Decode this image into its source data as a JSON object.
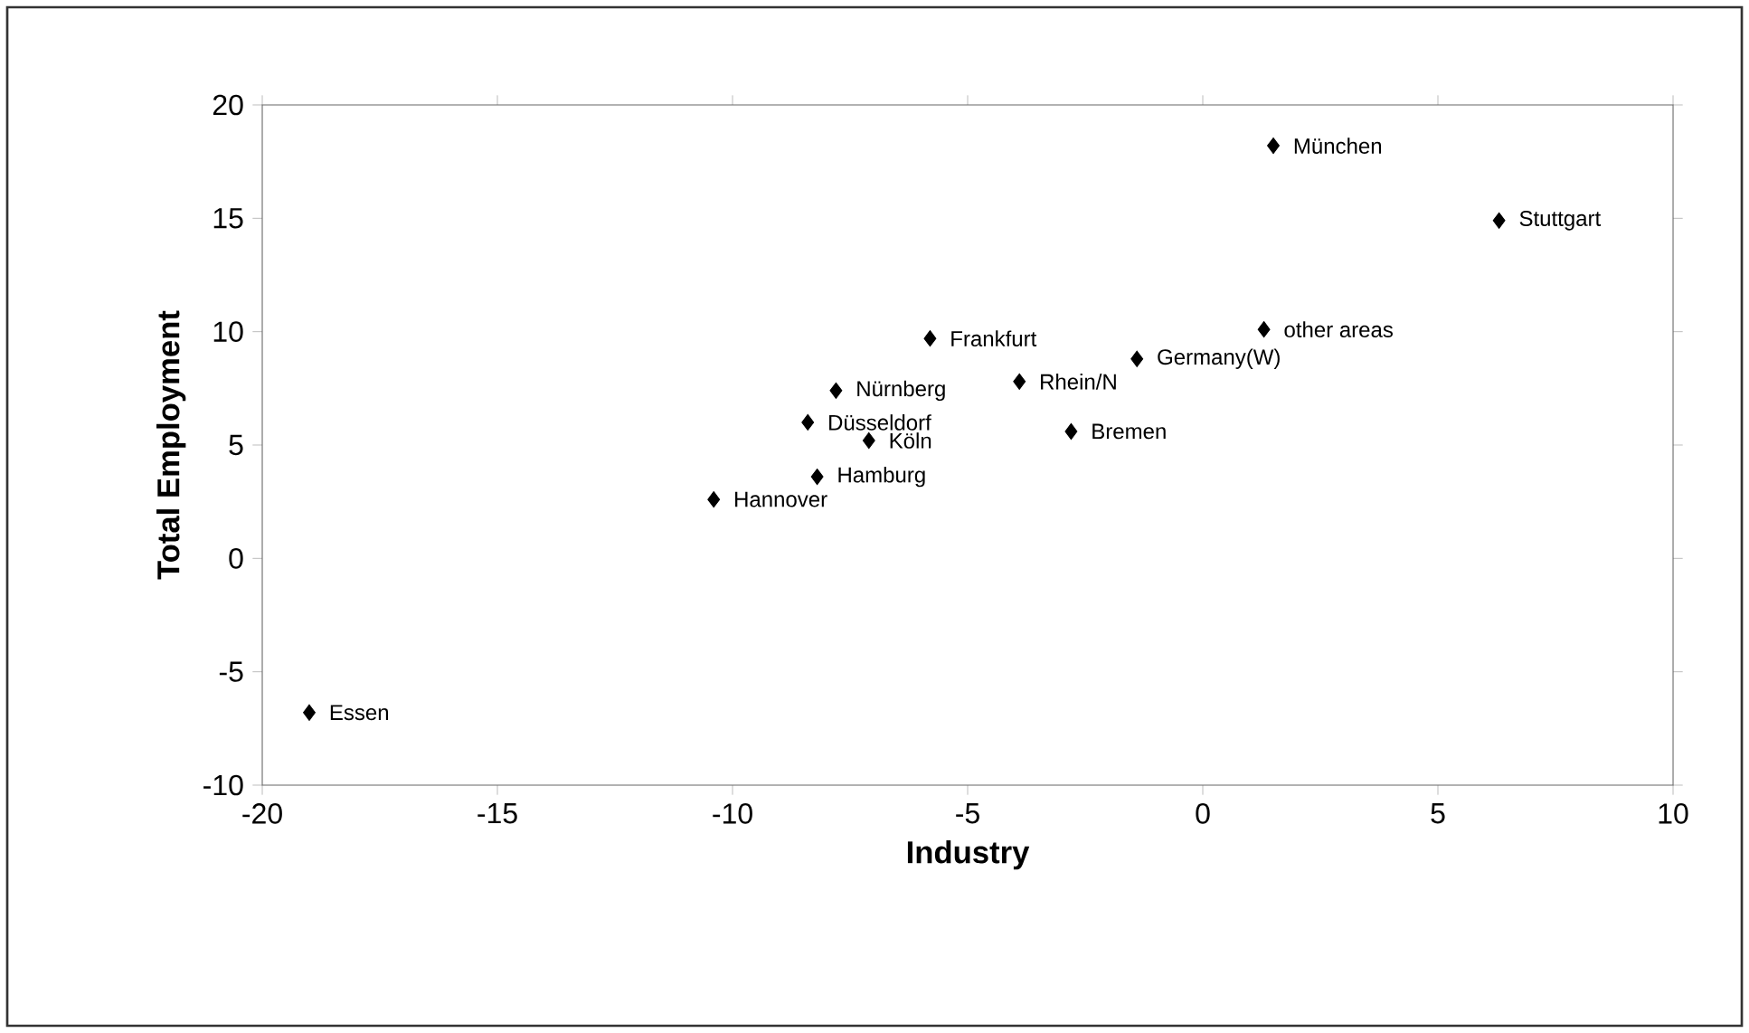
{
  "chart_data": {
    "type": "scatter",
    "xlabel": "Industry",
    "ylabel": "Total Employment",
    "x": [
      1.5,
      6.3,
      1.3,
      -1.4,
      -5.8,
      -3.9,
      -2.8,
      -7.8,
      -8.4,
      -7.1,
      -8.2,
      -10.4,
      -19.0
    ],
    "values": [
      18.2,
      14.9,
      10.1,
      8.8,
      9.7,
      7.8,
      5.6,
      7.4,
      6.0,
      5.2,
      3.6,
      2.6,
      -6.8
    ],
    "color": "#000000",
    "marker": "diamond",
    "grid": false,
    "xlim": [
      -20,
      10
    ],
    "ylim": [
      -10,
      20
    ],
    "xticks": [
      -20,
      -15,
      -10,
      -5,
      0,
      5,
      10
    ],
    "yticks": [
      -10,
      -5,
      0,
      5,
      10,
      15,
      20
    ],
    "annotations": [
      {
        "text": "München",
        "x": 1.5,
        "y": 18.2
      },
      {
        "text": "Stuttgart",
        "x": 6.3,
        "y": 14.9
      },
      {
        "text": "other areas",
        "x": 1.3,
        "y": 10.1
      },
      {
        "text": "Germany(W)",
        "x": -1.4,
        "y": 8.8
      },
      {
        "text": "Frankfurt",
        "x": -5.8,
        "y": 9.7
      },
      {
        "text": "Rhein/N",
        "x": -3.9,
        "y": 7.8
      },
      {
        "text": "Bremen",
        "x": -2.8,
        "y": 5.6
      },
      {
        "text": "Nürnberg",
        "x": -7.8,
        "y": 7.4
      },
      {
        "text": "Düsseldorf",
        "x": -8.4,
        "y": 6.0
      },
      {
        "text": "Köln",
        "x": -7.1,
        "y": 5.2
      },
      {
        "text": "Hamburg",
        "x": -8.2,
        "y": 3.6
      },
      {
        "text": "Hannover",
        "x": -10.4,
        "y": 2.6
      },
      {
        "text": "Essen",
        "x": -19.0,
        "y": -6.8
      }
    ]
  }
}
